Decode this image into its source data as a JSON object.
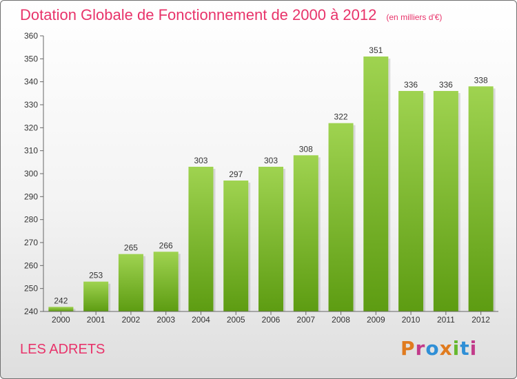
{
  "header": {
    "title": "Dotation Globale de Fonctionnement de 2000 à 2012",
    "unit_note": "(en milliers d'€)"
  },
  "footer": {
    "commune": "LES ADRETS",
    "logo_text": "Proxiti"
  },
  "colors": {
    "title": "#e8336a",
    "bar_light": "#9fd350",
    "bar_dark": "#5d9c12",
    "logo": [
      "#e07b1f",
      "#c23b8a",
      "#2f8fd6",
      "#e07b1f",
      "#66b82e",
      "#2f8fd6",
      "#c23b8a"
    ]
  },
  "chart_data": {
    "type": "bar",
    "categories": [
      "2000",
      "2001",
      "2002",
      "2003",
      "2004",
      "2005",
      "2006",
      "2007",
      "2008",
      "2009",
      "2010",
      "2011",
      "2012"
    ],
    "values": [
      242,
      253,
      265,
      266,
      303,
      297,
      303,
      308,
      322,
      351,
      336,
      336,
      338
    ],
    "title": "Dotation Globale de Fonctionnement de 2000 à 2012",
    "xlabel": "",
    "ylabel": "",
    "ylim": [
      240,
      360
    ],
    "yticks": [
      240,
      250,
      260,
      270,
      280,
      290,
      300,
      310,
      320,
      330,
      340,
      350,
      360
    ],
    "grid": false,
    "data_labels": true
  }
}
